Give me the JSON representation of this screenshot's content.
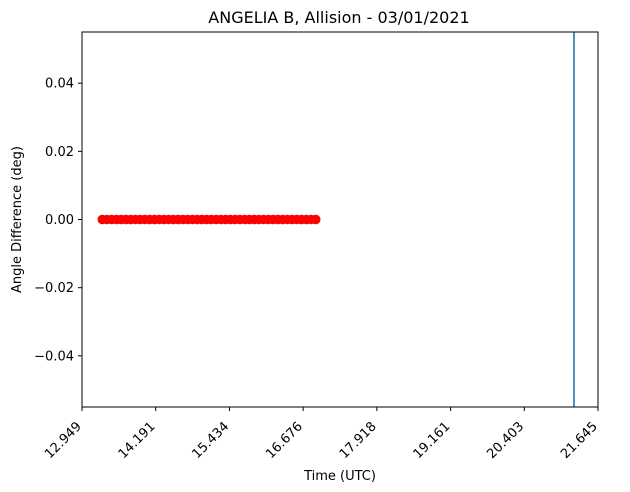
{
  "chart_data": {
    "type": "scatter",
    "title": "ANGELIA B, Allision - 03/01/2021",
    "xlabel": "Time (UTC)",
    "ylabel": "Angle Difference (deg)",
    "xlim": [
      12.949,
      21.645
    ],
    "ylim": [
      -0.055,
      0.055
    ],
    "x_ticks": [
      "12.949",
      "14.191",
      "15.434",
      "16.676",
      "17.918",
      "19.161",
      "20.403",
      "21.645"
    ],
    "y_ticks": [
      "0.04",
      "0.02",
      "0.00",
      "−0.02",
      "−0.04"
    ],
    "y_tick_values": [
      0.04,
      0.02,
      0.0,
      -0.02,
      -0.04
    ],
    "grid": false,
    "series": [
      {
        "x_start": 13.29,
        "x_end": 16.89,
        "count": 46,
        "y": 0.0,
        "color": "#ff0000",
        "marker": "circle"
      }
    ],
    "vertical_line": {
      "x": 21.24,
      "color": "#1f77b4"
    }
  }
}
